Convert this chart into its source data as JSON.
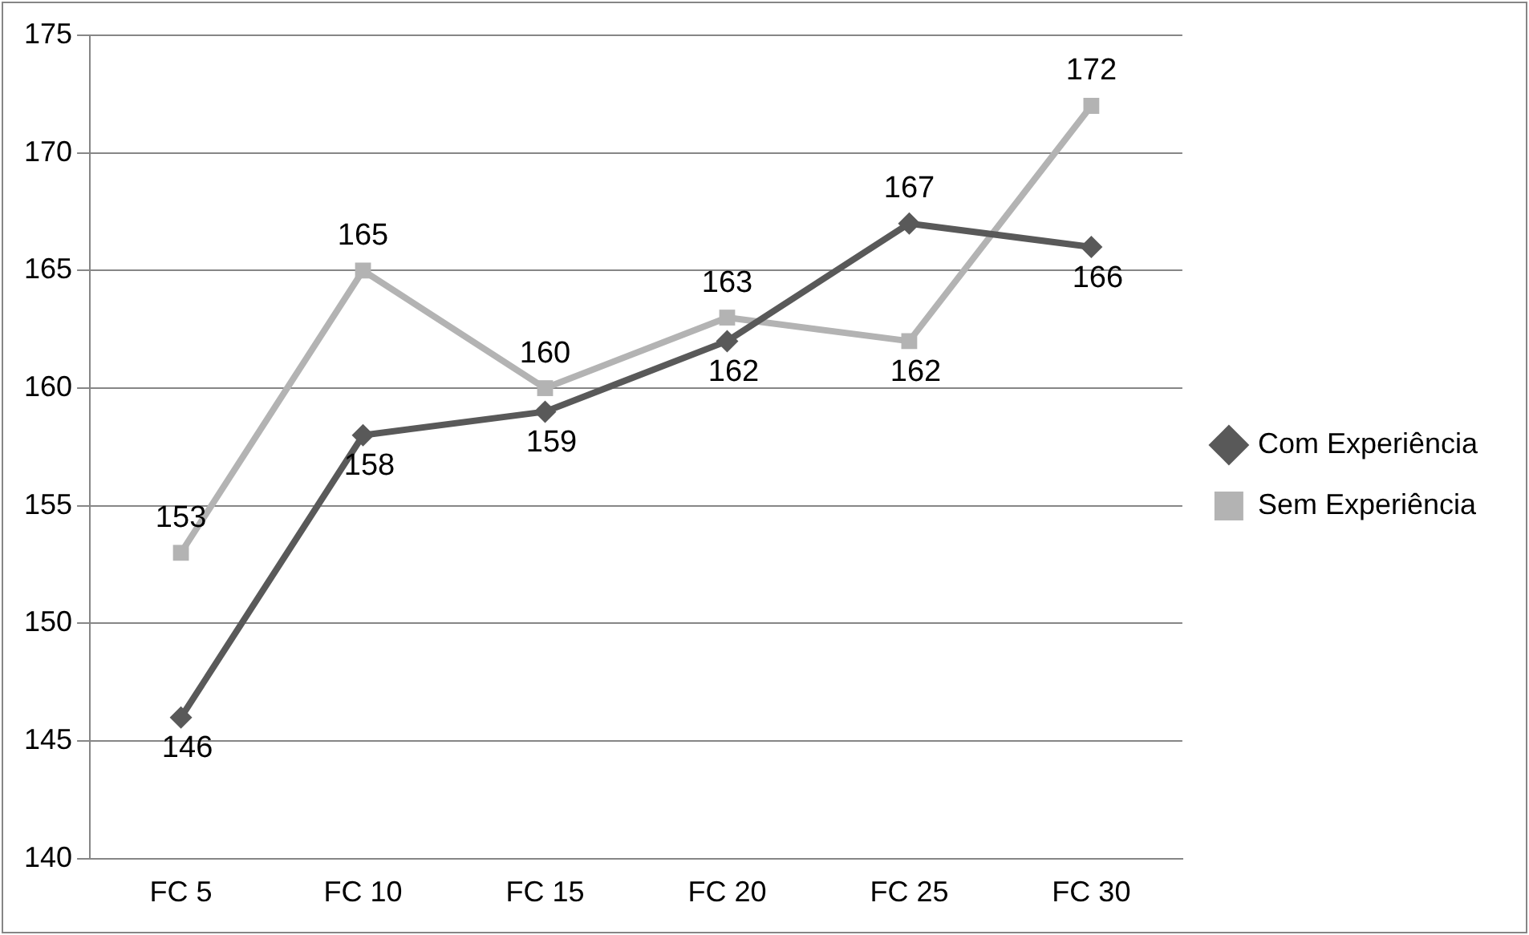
{
  "chart_data": {
    "type": "line",
    "categories": [
      "FC 5",
      "FC 10",
      "FC 15",
      "FC 20",
      "FC 25",
      "FC 30"
    ],
    "series": [
      {
        "name": "Com Experiência",
        "color": "#595959",
        "marker": "diamond",
        "values": [
          146,
          158,
          159,
          162,
          167,
          166
        ]
      },
      {
        "name": "Sem Experiência",
        "color": "#b3b3b3",
        "marker": "square",
        "values": [
          153,
          165,
          160,
          163,
          162,
          172
        ]
      }
    ],
    "ylim": [
      140,
      175
    ],
    "yticks": [
      140,
      145,
      150,
      155,
      160,
      165,
      170,
      175
    ],
    "grid": "y",
    "legend": "right",
    "data_labels": true,
    "line_style": "solid"
  }
}
